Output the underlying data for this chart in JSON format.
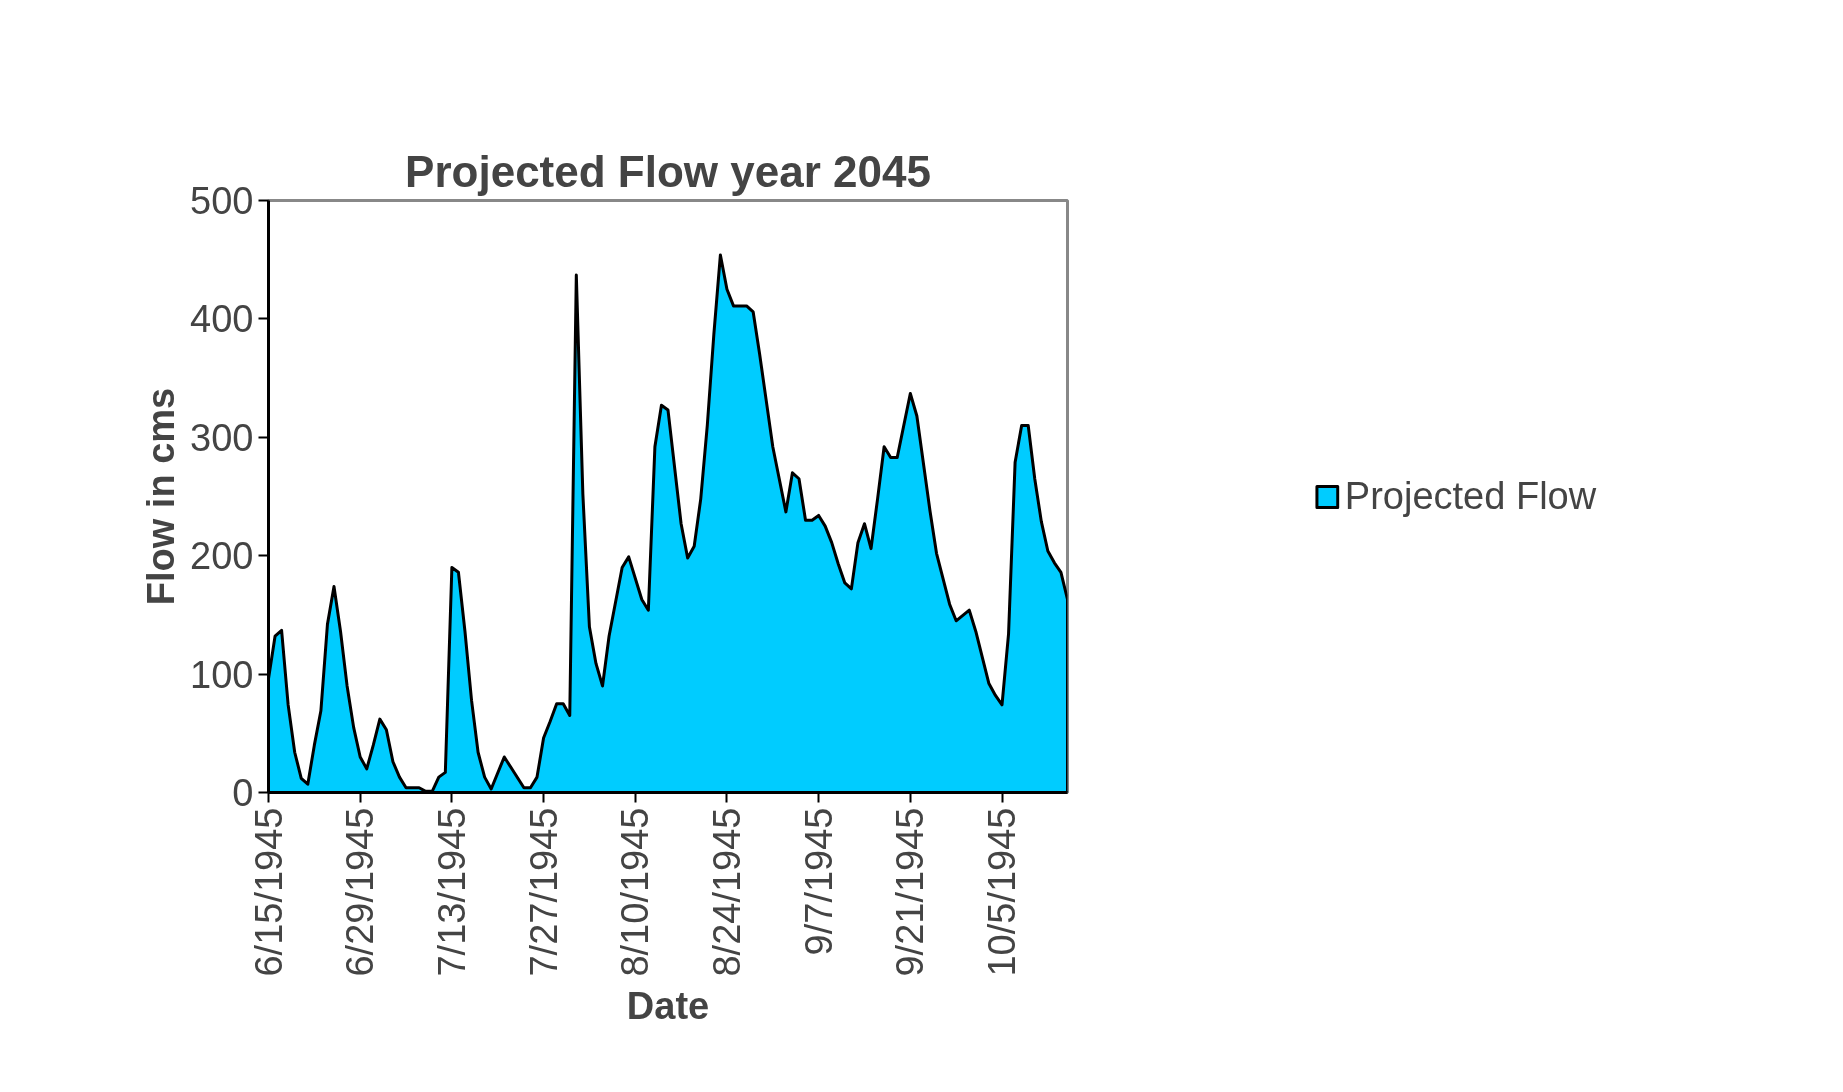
{
  "chart_data": {
    "type": "area",
    "title": "Projected Flow year 2045",
    "xlabel": "Date",
    "ylabel": "Flow in cms",
    "x": [
      "1945-06-15",
      "1945-06-16",
      "1945-06-17",
      "1945-06-18",
      "1945-06-19",
      "1945-06-20",
      "1945-06-21",
      "1945-06-22",
      "1945-06-23",
      "1945-06-24",
      "1945-06-25",
      "1945-06-26",
      "1945-06-27",
      "1945-06-28",
      "1945-06-29",
      "1945-06-30",
      "1945-07-01",
      "1945-07-02",
      "1945-07-03",
      "1945-07-04",
      "1945-07-05",
      "1945-07-06",
      "1945-07-08",
      "1945-07-09",
      "1945-07-10",
      "1945-07-11",
      "1945-07-12",
      "1945-07-13",
      "1945-07-14",
      "1945-07-15",
      "1945-07-16",
      "1945-07-17",
      "1945-07-18",
      "1945-07-19",
      "1945-07-21",
      "1945-07-24",
      "1945-07-25",
      "1945-07-26",
      "1945-07-27",
      "1945-07-28",
      "1945-07-29",
      "1945-07-30",
      "1945-07-31",
      "1945-08-01",
      "1945-08-02",
      "1945-08-03",
      "1945-08-04",
      "1945-08-05",
      "1945-08-06",
      "1945-08-08",
      "1945-08-09",
      "1945-08-11",
      "1945-08-12",
      "1945-08-13",
      "1945-08-14",
      "1945-08-15",
      "1945-08-17",
      "1945-08-18",
      "1945-08-19",
      "1945-08-20",
      "1945-08-21",
      "1945-08-22",
      "1945-08-23",
      "1945-08-24",
      "1945-08-25",
      "1945-08-27",
      "1945-08-28",
      "1945-08-29",
      "1945-08-30",
      "1945-08-31",
      "1945-09-02",
      "1945-09-03",
      "1945-09-04",
      "1945-09-05",
      "1945-09-06",
      "1945-09-07",
      "1945-09-08",
      "1945-09-09",
      "1945-09-10",
      "1945-09-11",
      "1945-09-12",
      "1945-09-13",
      "1945-09-14",
      "1945-09-15",
      "1945-09-16",
      "1945-09-17",
      "1945-09-18",
      "1945-09-19",
      "1945-09-21",
      "1945-09-22",
      "1945-09-24",
      "1945-09-25",
      "1945-09-27",
      "1945-09-28",
      "1945-09-30",
      "1945-10-01",
      "1945-10-03",
      "1945-10-04",
      "1945-10-05",
      "1945-10-06",
      "1945-10-07",
      "1945-10-08",
      "1945-10-09",
      "1945-10-10",
      "1945-10-11",
      "1945-10-12",
      "1945-10-13",
      "1945-10-14",
      "1945-10-15"
    ],
    "series": [
      {
        "name": "Projected Flow",
        "color": "#00ccff",
        "values": [
          96,
          132,
          137,
          74,
          34,
          12,
          7,
          40,
          69,
          142,
          174,
          136,
          90,
          55,
          30,
          20,
          40,
          62,
          53,
          26,
          13,
          4,
          4,
          1,
          1,
          13,
          17,
          190,
          186,
          136,
          78,
          34,
          13,
          3,
          30,
          4,
          4,
          13,
          46,
          60,
          75,
          75,
          65,
          437,
          252,
          140,
          109,
          90,
          132,
          190,
          199,
          163,
          154,
          292,
          327,
          323,
          227,
          198,
          208,
          248,
          310,
          387,
          454,
          425,
          411,
          411,
          406,
          370,
          331,
          292,
          237,
          270,
          265,
          230,
          230,
          234,
          225,
          211,
          193,
          177,
          172,
          211,
          227,
          206,
          248,
          292,
          283,
          283,
          337,
          318,
          238,
          202,
          159,
          145,
          154,
          136,
          92,
          82,
          74,
          134,
          279,
          310,
          310,
          265,
          229,
          204,
          194,
          186,
          163
        ]
      }
    ],
    "xlim": [
      "1945-06-15",
      "1945-10-15"
    ],
    "xticks": [
      {
        "value": "1945-06-15",
        "label": "6/15/1945"
      },
      {
        "value": "1945-06-29",
        "label": "6/29/1945"
      },
      {
        "value": "1945-07-13",
        "label": "7/13/1945"
      },
      {
        "value": "1945-07-27",
        "label": "7/27/1945"
      },
      {
        "value": "1945-08-10",
        "label": "8/10/1945"
      },
      {
        "value": "1945-08-24",
        "label": "8/24/1945"
      },
      {
        "value": "1945-09-07",
        "label": "9/7/1945"
      },
      {
        "value": "1945-09-21",
        "label": "9/21/1945"
      },
      {
        "value": "1945-10-05",
        "label": "10/5/1945"
      }
    ],
    "ylim": [
      0,
      500
    ],
    "yticks": [
      0,
      100,
      200,
      300,
      400,
      500
    ],
    "grid": false,
    "legend": "right"
  }
}
